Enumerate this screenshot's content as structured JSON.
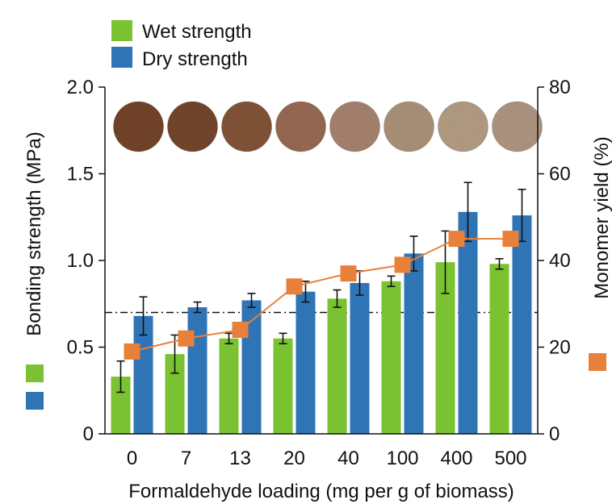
{
  "chart_data": {
    "type": "bar",
    "xlabel": "Formaldehyde loading (mg per g of biomass)",
    "ylabel": "Bonding strength (MPa)",
    "y2label": "Monomer yield (%)",
    "categories": [
      "0",
      "7",
      "13",
      "20",
      "40",
      "100",
      "400",
      "500"
    ],
    "ylim": [
      0,
      2.0
    ],
    "yticks": [
      "0",
      "0.5",
      "1.0",
      "1.5",
      "2.0"
    ],
    "ytick_values": [
      0,
      0.5,
      1.0,
      1.5,
      2.0
    ],
    "y2lim": [
      0,
      80
    ],
    "y2ticks": [
      "0",
      "20",
      "40",
      "60",
      "80"
    ],
    "y2tick_values": [
      0,
      20,
      40,
      60,
      80
    ],
    "legend_position": "top-left",
    "series": [
      {
        "name": "Wet strength",
        "kind": "bar",
        "color": "#7ac231",
        "values": [
          0.33,
          0.46,
          0.55,
          0.55,
          0.78,
          0.88,
          0.99,
          0.98
        ],
        "errors": [
          0.09,
          0.11,
          0.03,
          0.03,
          0.05,
          0.03,
          0.18,
          0.03
        ]
      },
      {
        "name": "Dry strength",
        "kind": "bar",
        "color": "#2f74b5",
        "values": [
          0.68,
          0.73,
          0.77,
          0.82,
          0.87,
          1.04,
          1.28,
          1.26
        ],
        "errors": [
          0.11,
          0.03,
          0.04,
          0.06,
          0.07,
          0.1,
          0.17,
          0.15
        ]
      },
      {
        "name": "Monomer yield",
        "kind": "line",
        "axis": "right",
        "color": "#e8803a",
        "values": [
          19,
          22,
          24,
          34,
          37,
          39,
          45,
          45
        ]
      }
    ],
    "reference_line": {
      "y": 0.7,
      "style": "dash-dot"
    },
    "sample_images": [
      "sample-0",
      "sample-7",
      "sample-13",
      "sample-20",
      "sample-40",
      "sample-100",
      "sample-400",
      "sample-500"
    ],
    "sample_colors": [
      "#7a4a2f",
      "#7c4c30",
      "#8a5a3e",
      "#a07058",
      "#b08a74",
      "#b59a80",
      "#bda68a",
      "#b89e88"
    ]
  }
}
